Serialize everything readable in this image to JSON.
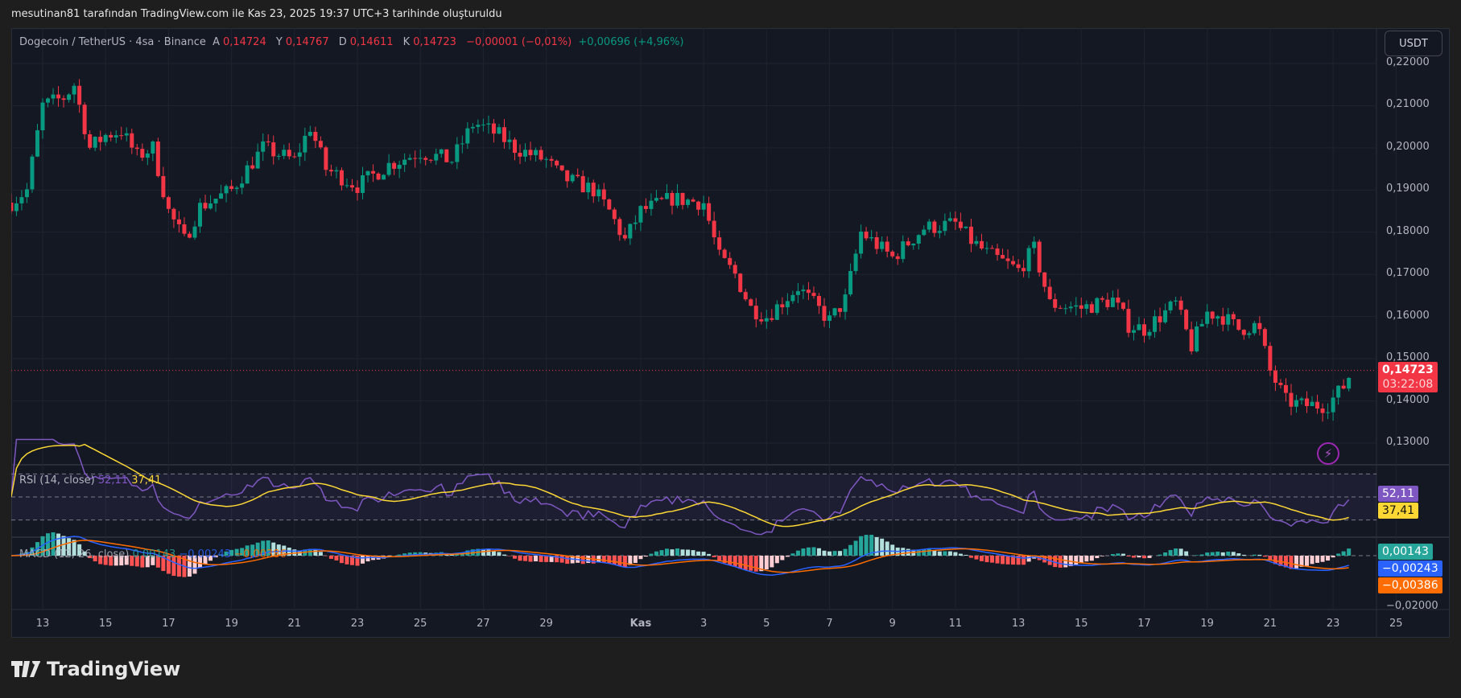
{
  "caption": "mesutinan81 tarafından TradingView.com ile Kas 23, 2025 19:37 UTC+3 tarihinde oluşturuldu",
  "legend": {
    "symbol": "Dogecoin / TetherUS · 4sa · Binance",
    "open_label": "A",
    "open": "0,14724",
    "high_label": "Y",
    "high": "0,14767",
    "low_label": "D",
    "low": "0,14611",
    "close_label": "K",
    "close": "0,14723",
    "change": "−0,00001 (−0,01%)",
    "change2": "+0,00696 (+4,96%)"
  },
  "currency_button": "USDT",
  "price_axis": [
    "0,22000",
    "0,21000",
    "0,20000",
    "0,19000",
    "0,18000",
    "0,17000",
    "0,16000",
    "0,15000",
    "0,14000",
    "0,13000"
  ],
  "current_price": {
    "value": "0,14723",
    "countdown": "03:22:08"
  },
  "rsi": {
    "label": "RSI (14, close)",
    "value": "52,11",
    "ma": "37,41"
  },
  "macd": {
    "label": "MACD (12, 26, close)",
    "hist": "0,00143",
    "macd": "−0,00243",
    "signal": "−0,00386",
    "axis_label": "−0,02000"
  },
  "time_axis": [
    {
      "d": 0,
      "label": "13"
    },
    {
      "d": 2,
      "label": "15"
    },
    {
      "d": 4,
      "label": "17"
    },
    {
      "d": 6,
      "label": "19"
    },
    {
      "d": 8,
      "label": "21"
    },
    {
      "d": 10,
      "label": "23"
    },
    {
      "d": 12,
      "label": "25"
    },
    {
      "d": 14,
      "label": "27"
    },
    {
      "d": 16,
      "label": "29"
    },
    {
      "d": 19,
      "label": "Kas"
    },
    {
      "d": 21,
      "label": "3"
    },
    {
      "d": 23,
      "label": "5"
    },
    {
      "d": 25,
      "label": "7"
    },
    {
      "d": 27,
      "label": "9"
    },
    {
      "d": 29,
      "label": "11"
    },
    {
      "d": 31,
      "label": "13"
    },
    {
      "d": 33,
      "label": "15"
    },
    {
      "d": 35,
      "label": "17"
    },
    {
      "d": 37,
      "label": "19"
    },
    {
      "d": 39,
      "label": "21"
    },
    {
      "d": 41,
      "label": "23"
    },
    {
      "d": 43,
      "label": "25"
    }
  ],
  "logo": "TradingView",
  "colors": {
    "up": "#089981",
    "down": "#f23645",
    "rsi": "#7e57c2",
    "rsi_ma": "#fdd835",
    "macd": "#2962ff",
    "signal": "#ff6d00"
  },
  "chart_data": {
    "type": "candlestick",
    "interval": "4h",
    "ylim": [
      0.125,
      0.225
    ],
    "close_anchors_day_price": [
      [
        -1,
        0.187
      ],
      [
        -0.5,
        0.19
      ],
      [
        0,
        0.21
      ],
      [
        0.7,
        0.212
      ],
      [
        1,
        0.215
      ],
      [
        1.5,
        0.2
      ],
      [
        2,
        0.203
      ],
      [
        2.5,
        0.204
      ],
      [
        3,
        0.198
      ],
      [
        3.5,
        0.2
      ],
      [
        4,
        0.185
      ],
      [
        4.5,
        0.178
      ],
      [
        5,
        0.186
      ],
      [
        6,
        0.19
      ],
      [
        6.5,
        0.195
      ],
      [
        7,
        0.2
      ],
      [
        8,
        0.197
      ],
      [
        8.5,
        0.205
      ],
      [
        9,
        0.195
      ],
      [
        10,
        0.191
      ],
      [
        11,
        0.196
      ],
      [
        12,
        0.199
      ],
      [
        13,
        0.197
      ],
      [
        13.7,
        0.206
      ],
      [
        14.5,
        0.203
      ],
      [
        15,
        0.2
      ],
      [
        16,
        0.197
      ],
      [
        16.5,
        0.193
      ],
      [
        17.5,
        0.19
      ],
      [
        18,
        0.185
      ],
      [
        18.5,
        0.178
      ],
      [
        19,
        0.185
      ],
      [
        20,
        0.188
      ],
      [
        21,
        0.187
      ],
      [
        21.5,
        0.174
      ],
      [
        22,
        0.17
      ],
      [
        22.5,
        0.162
      ],
      [
        23,
        0.16
      ],
      [
        24,
        0.167
      ],
      [
        25,
        0.159
      ],
      [
        25.5,
        0.164
      ],
      [
        26,
        0.18
      ],
      [
        27,
        0.174
      ],
      [
        28,
        0.181
      ],
      [
        29,
        0.182
      ],
      [
        29.5,
        0.178
      ],
      [
        30,
        0.175
      ],
      [
        31,
        0.171
      ],
      [
        31.5,
        0.176
      ],
      [
        32,
        0.163
      ],
      [
        33,
        0.162
      ],
      [
        34,
        0.164
      ],
      [
        34.5,
        0.158
      ],
      [
        35,
        0.157
      ],
      [
        36,
        0.163
      ],
      [
        36.5,
        0.153
      ],
      [
        37,
        0.161
      ],
      [
        37.5,
        0.16
      ],
      [
        38,
        0.157
      ],
      [
        38.6,
        0.158
      ],
      [
        39,
        0.147
      ],
      [
        39.5,
        0.14
      ],
      [
        40,
        0.139
      ],
      [
        40.8,
        0.139
      ],
      [
        41.3,
        0.143
      ],
      [
        41.6,
        0.1472
      ]
    ]
  }
}
